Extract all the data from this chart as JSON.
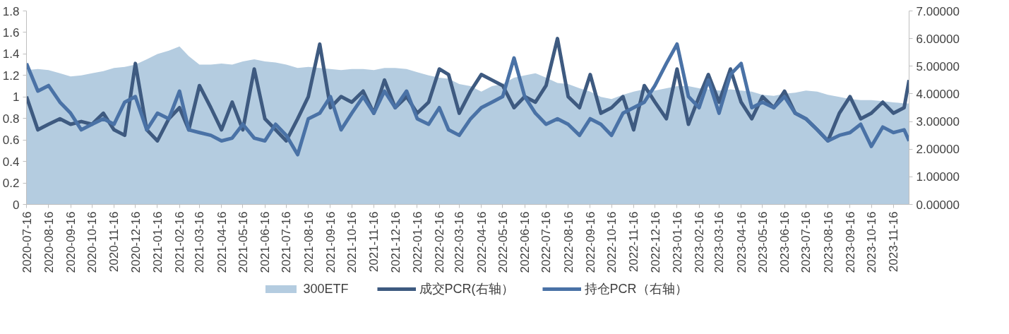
{
  "chart_data": {
    "type": "line",
    "x": [
      "2020-07-16",
      "2020-08-01",
      "2020-08-16",
      "2020-09-01",
      "2020-09-16",
      "2020-10-01",
      "2020-10-16",
      "2020-11-01",
      "2020-11-16",
      "2020-12-01",
      "2020-12-16",
      "2021-01-01",
      "2021-01-16",
      "2021-02-01",
      "2021-02-16",
      "2021-03-01",
      "2021-03-16",
      "2021-04-01",
      "2021-04-16",
      "2021-05-01",
      "2021-05-16",
      "2021-06-01",
      "2021-06-16",
      "2021-07-01",
      "2021-07-16",
      "2021-08-01",
      "2021-08-16",
      "2021-09-01",
      "2021-09-16",
      "2021-10-01",
      "2021-10-16",
      "2021-11-01",
      "2021-11-16",
      "2021-12-01",
      "2021-12-16",
      "2022-01-01",
      "2022-01-16",
      "2022-02-01",
      "2022-02-16",
      "2022-03-01",
      "2022-03-16",
      "2022-04-01",
      "2022-04-16",
      "2022-05-01",
      "2022-05-16",
      "2022-06-01",
      "2022-06-16",
      "2022-07-01",
      "2022-07-16",
      "2022-08-01",
      "2022-08-16",
      "2022-09-01",
      "2022-09-16",
      "2022-10-01",
      "2022-10-16",
      "2022-11-01",
      "2022-11-16",
      "2022-12-01",
      "2022-12-16",
      "2023-01-01",
      "2023-01-16",
      "2023-02-01",
      "2023-02-16",
      "2023-03-01",
      "2023-03-16",
      "2023-04-01",
      "2023-04-16",
      "2023-05-01",
      "2023-05-16",
      "2023-06-01",
      "2023-06-16",
      "2023-07-01",
      "2023-07-16",
      "2023-08-01",
      "2023-08-16",
      "2023-09-01",
      "2023-09-16",
      "2023-10-01",
      "2023-10-16",
      "2023-11-01",
      "2023-11-16",
      "2023-12-01",
      "2023-12-08"
    ],
    "series": [
      {
        "name": "300ETF",
        "type": "area",
        "color": "#b4cce0",
        "values": [
          1.25,
          1.26,
          1.25,
          1.22,
          1.19,
          1.2,
          1.22,
          1.24,
          1.27,
          1.28,
          1.3,
          1.35,
          1.4,
          1.43,
          1.47,
          1.38,
          1.3,
          1.3,
          1.31,
          1.3,
          1.33,
          1.35,
          1.33,
          1.32,
          1.3,
          1.27,
          1.28,
          1.27,
          1.26,
          1.25,
          1.26,
          1.26,
          1.25,
          1.27,
          1.27,
          1.26,
          1.23,
          1.2,
          1.18,
          1.17,
          1.12,
          1.1,
          1.05,
          1.1,
          1.12,
          1.18,
          1.2,
          1.22,
          1.18,
          1.13,
          1.12,
          1.08,
          1.05,
          1.0,
          0.98,
          1.02,
          1.05,
          1.07,
          1.06,
          1.08,
          1.1,
          1.1,
          1.08,
          1.07,
          1.06,
          1.07,
          1.06,
          1.05,
          1.02,
          1.01,
          1.03,
          1.04,
          1.06,
          1.05,
          1.02,
          1.0,
          0.98,
          0.97,
          0.97,
          0.96,
          0.95,
          0.94,
          0.94
        ]
      },
      {
        "name": "成交PCR(右轴）",
        "axis": "y2",
        "color": "#3e5a80",
        "values": [
          3.9,
          2.7,
          2.9,
          3.1,
          2.9,
          3.0,
          2.9,
          3.3,
          2.7,
          2.5,
          5.1,
          2.7,
          2.3,
          3.1,
          3.5,
          2.7,
          4.3,
          3.5,
          2.7,
          3.7,
          2.7,
          4.9,
          3.1,
          2.7,
          2.3,
          3.1,
          3.9,
          5.8,
          3.5,
          3.9,
          3.7,
          4.1,
          3.3,
          4.5,
          3.5,
          3.9,
          3.3,
          3.7,
          4.9,
          4.7,
          3.3,
          4.1,
          4.7,
          4.5,
          4.3,
          3.5,
          3.9,
          3.7,
          4.3,
          6.0,
          3.9,
          3.5,
          4.7,
          3.3,
          3.5,
          3.9,
          2.7,
          4.3,
          3.7,
          3.1,
          4.9,
          2.9,
          3.9,
          4.7,
          3.7,
          4.9,
          3.7,
          3.1,
          3.9,
          3.5,
          4.1,
          3.3,
          3.1,
          2.7,
          2.3,
          3.3,
          3.9,
          3.1,
          3.3,
          3.7,
          3.3,
          3.5,
          4.5
        ]
      },
      {
        "name": "持仓PCR（右轴）",
        "axis": "y2",
        "color": "#4a72a6",
        "values": [
          5.1,
          4.1,
          4.3,
          3.7,
          3.3,
          2.7,
          2.9,
          3.1,
          2.9,
          3.7,
          3.9,
          2.7,
          3.3,
          3.1,
          4.1,
          2.7,
          2.6,
          2.5,
          2.3,
          2.4,
          2.9,
          2.4,
          2.3,
          2.9,
          2.5,
          1.8,
          3.1,
          3.3,
          3.9,
          2.7,
          3.3,
          3.9,
          3.3,
          4.1,
          3.5,
          4.1,
          3.1,
          2.9,
          3.5,
          2.7,
          2.5,
          3.1,
          3.5,
          3.7,
          3.9,
          5.3,
          3.9,
          3.3,
          2.9,
          3.1,
          2.9,
          2.5,
          3.1,
          2.9,
          2.5,
          3.3,
          3.5,
          3.7,
          4.3,
          5.1,
          5.8,
          3.9,
          3.5,
          4.5,
          3.3,
          4.7,
          5.1,
          3.5,
          3.7,
          3.5,
          3.9,
          3.3,
          3.1,
          2.7,
          2.3,
          2.5,
          2.6,
          2.9,
          2.1,
          2.8,
          2.6,
          2.7,
          2.3
        ]
      }
    ],
    "xlim": [
      "2020-07-16",
      "2023-12-08"
    ],
    "xticks": [
      "2020-07-16",
      "2020-08-16",
      "2020-09-16",
      "2020-10-16",
      "2020-11-16",
      "2020-12-16",
      "2021-01-16",
      "2021-02-16",
      "2021-03-16",
      "2021-04-16",
      "2021-05-16",
      "2021-06-16",
      "2021-07-16",
      "2021-08-16",
      "2021-09-16",
      "2021-10-16",
      "2021-11-16",
      "2021-12-16",
      "2022-01-16",
      "2022-02-16",
      "2022-03-16",
      "2022-04-16",
      "2022-05-16",
      "2022-06-16",
      "2022-07-16",
      "2022-08-16",
      "2022-09-16",
      "2022-10-16",
      "2022-11-16",
      "2022-12-16",
      "2023-01-16",
      "2023-02-16",
      "2023-03-16",
      "2023-04-16",
      "2023-05-16",
      "2023-06-16",
      "2023-07-16",
      "2023-08-16",
      "2023-09-16",
      "2023-10-16",
      "2023-11-16"
    ],
    "ylim": [
      0,
      1.8
    ],
    "yticks": [
      0,
      0.2,
      0.4,
      0.6,
      0.8,
      1,
      1.2,
      1.4,
      1.6,
      1.8
    ],
    "y2lim": [
      0,
      7
    ],
    "y2ticks": [
      {
        "value": 0,
        "label": "0.00000"
      },
      {
        "value": 1,
        "label": "1.00000"
      },
      {
        "value": 2,
        "label": "2.00000"
      },
      {
        "value": 3,
        "label": "3.00000"
      },
      {
        "value": 4,
        "label": "4.00000"
      },
      {
        "value": 5,
        "label": "5.00000"
      },
      {
        "value": 6,
        "label": "6.00000"
      },
      {
        "value": 7,
        "label": "7.00000"
      }
    ],
    "legend": "bottom",
    "grid": false,
    "line_style": "solid",
    "marker": "none"
  }
}
